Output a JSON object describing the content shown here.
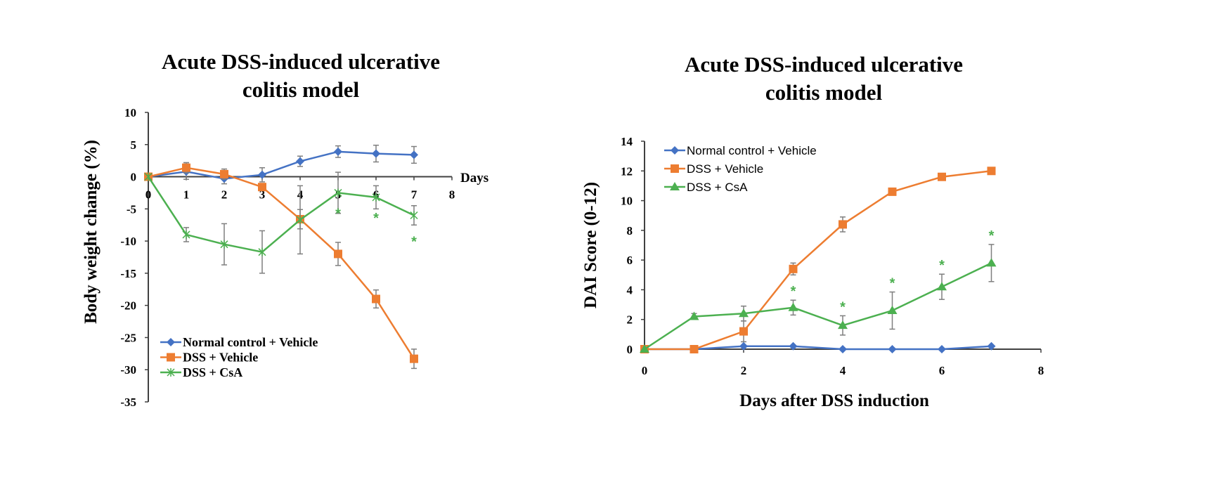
{
  "colors": {
    "normal": "#4472C4",
    "dss_vehicle": "#ED7D31",
    "dss_csa": "#4CB050",
    "error_bar": "#7f7f7f",
    "axis": "#404040"
  },
  "chart_data": [
    {
      "type": "line",
      "title_lines": [
        "Acute DSS-induced ulcerative",
        "colitis model"
      ],
      "xlabel": "Days",
      "ylabel": "Body weight change (%)",
      "xlim": [
        0,
        8
      ],
      "ylim": [
        -35,
        10
      ],
      "x_ticks": [
        "0",
        "1",
        "2",
        "3",
        "4",
        "5",
        "6",
        "7",
        "8"
      ],
      "y_ticks": [
        "10",
        "5",
        "0",
        "-5",
        "-10",
        "-15",
        "-20",
        "-25",
        "-30",
        "-35"
      ],
      "legend_position": "bottom-left",
      "x": [
        0,
        1,
        2,
        3,
        4,
        5,
        6,
        7
      ],
      "series": [
        {
          "name": "Normal control + Vehicle",
          "marker": "diamond",
          "color_key": "normal",
          "values": [
            0,
            0.8,
            -0.3,
            0.3,
            2.4,
            3.9,
            3.6,
            3.4
          ],
          "errors": [
            0,
            1.2,
            0.8,
            1.1,
            0.8,
            0.9,
            1.3,
            1.3
          ]
        },
        {
          "name": "DSS + Vehicle",
          "marker": "square",
          "color_key": "dss_vehicle",
          "values": [
            0,
            1.4,
            0.4,
            -1.6,
            -6.6,
            -12,
            -19,
            -28.3
          ],
          "errors": [
            0,
            0.8,
            0.8,
            0.3,
            1.5,
            1.8,
            1.4,
            1.5
          ]
        },
        {
          "name": "DSS +  CsA",
          "marker": "x",
          "color_key": "dss_csa",
          "values": [
            0,
            -9,
            -10.5,
            -11.7,
            -6.7,
            -2.5,
            -3.2,
            -6
          ],
          "errors": [
            0,
            1.1,
            3.2,
            3.3,
            5.3,
            3.2,
            1.8,
            1.5
          ]
        }
      ],
      "significance_marks": {
        "symbol": "*",
        "days": [
          5,
          6,
          7
        ],
        "series": "DSS +  CsA"
      }
    },
    {
      "type": "line",
      "title_lines": [
        "Acute DSS-induced ulcerative",
        "colitis model"
      ],
      "xlabel": "Days after DSS induction",
      "ylabel": "DAI Score (0-12)",
      "xlim": [
        0,
        8
      ],
      "ylim": [
        0,
        14
      ],
      "x_ticks": [
        "0",
        "2",
        "4",
        "6",
        "8"
      ],
      "y_ticks": [
        "14",
        "12",
        "10",
        "8",
        "6",
        "4",
        "2",
        "0"
      ],
      "legend_position": "top-left",
      "x": [
        0,
        1,
        2,
        3,
        4,
        5,
        6,
        7
      ],
      "series": [
        {
          "name": "Normal control + Vehicle",
          "marker": "diamond",
          "color_key": "normal",
          "values": [
            0,
            0,
            0.2,
            0.2,
            0,
            0,
            0,
            0.2
          ],
          "errors": [
            0,
            0,
            0,
            0,
            0,
            0,
            0,
            0
          ]
        },
        {
          "name": "DSS + Vehicle",
          "marker": "square",
          "color_key": "dss_vehicle",
          "values": [
            0,
            0,
            1.2,
            5.4,
            8.4,
            10.6,
            11.6,
            12
          ],
          "errors": [
            0,
            0,
            0.7,
            0.4,
            0.5,
            0.1,
            0.1,
            0.1
          ]
        },
        {
          "name": "DSS + CsA",
          "marker": "triangle",
          "color_key": "dss_csa",
          "values": [
            0,
            2.2,
            2.4,
            2.8,
            1.6,
            2.6,
            4.2,
            5.8
          ],
          "errors": [
            0,
            0.2,
            0.5,
            0.5,
            0.65,
            1.25,
            0.85,
            1.25
          ]
        }
      ],
      "significance_marks": {
        "symbol": "*",
        "days": [
          3,
          4,
          5,
          6,
          7
        ],
        "series": "DSS + CsA"
      }
    }
  ]
}
